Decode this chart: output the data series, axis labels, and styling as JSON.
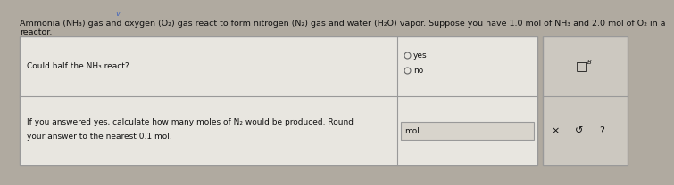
{
  "bg_color": "#b0aaa0",
  "table_bg": "#e8e6e0",
  "sidebar_bg": "#ccc8c0",
  "title_line1": "Ammonia (NH₃) gas and oxygen (O₂) gas react to form nitrogen (N₂) gas and water (H₂O) vapor. Suppose you have 1.0 mol of NH₃ and 2.0 mol of O₂ in a",
  "title_line2": "reactor.",
  "row1_q": "Could half the NH₃ react?",
  "opt_yes": "yes",
  "opt_no": "no",
  "row2_q_line1": "If you answered yes, calculate how many moles of N₂ would be produced. Round",
  "row2_q_line2": "your answer to the nearest 0.1 mol.",
  "row2_ans": "mol",
  "sidebar_top_icon": "□",
  "sidebar_top_super": "B",
  "sidebar_x": "×",
  "sidebar_undo": "↺",
  "sidebar_q": "?",
  "font_title": 6.8,
  "font_table": 6.5,
  "text_color": "#111111",
  "border_color": "#999999",
  "check_color": "#4466bb",
  "input_bg": "#d8d4cc"
}
